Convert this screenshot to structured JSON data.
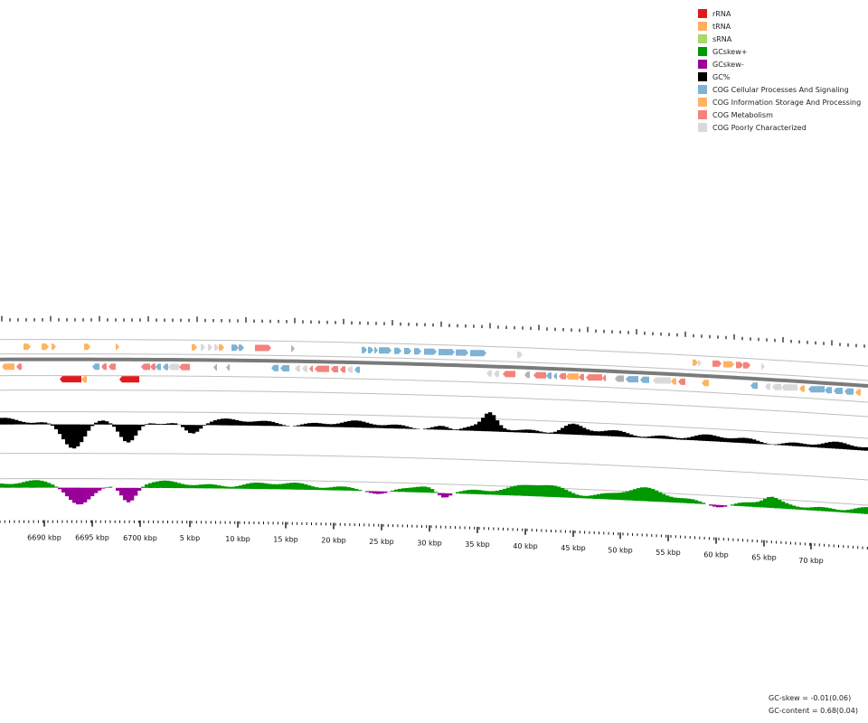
{
  "legend": [
    {
      "label": "rRNA",
      "color": "#e31a1c"
    },
    {
      "label": "tRNA",
      "color": "#fdae61"
    },
    {
      "label": "sRNA",
      "color": "#a6d96a"
    },
    {
      "label": "GCskew+",
      "color": "#009900"
    },
    {
      "label": "GCskew-",
      "color": "#990099"
    },
    {
      "label": "GC%",
      "color": "#000000"
    },
    {
      "label": "COG Cellular Processes And Signaling",
      "color": "#7fb2d5"
    },
    {
      "label": "COG Information Storage And Processing",
      "color": "#fdb462"
    },
    {
      "label": "COG Metabolism",
      "color": "#f4837d"
    },
    {
      "label": "COG Poorly Characterized",
      "color": "#d9d9d9"
    }
  ],
  "axis": {
    "tick_labels": [
      "6690 kbp",
      "6695 kbp",
      "6700 kbp",
      "5 kbp",
      "10 kbp",
      "15 kbp",
      "20 kbp",
      "25 kbp",
      "30 kbp",
      "35 kbp",
      "40 kbp",
      "45 kbp",
      "50 kbp",
      "55 kbp",
      "60 kbp",
      "65 kbp",
      "70 kbp"
    ]
  },
  "stats": {
    "gc_skew": "GC-skew = -0.01(0.06)",
    "gc_content": "GC-content = 0.68(0.04)"
  },
  "colors": {
    "gc_content": "#000000",
    "skew_pos": "#009900",
    "skew_neg": "#990099",
    "backbone": "#7a7a7a",
    "ring_line": "#bfbfbf"
  }
}
